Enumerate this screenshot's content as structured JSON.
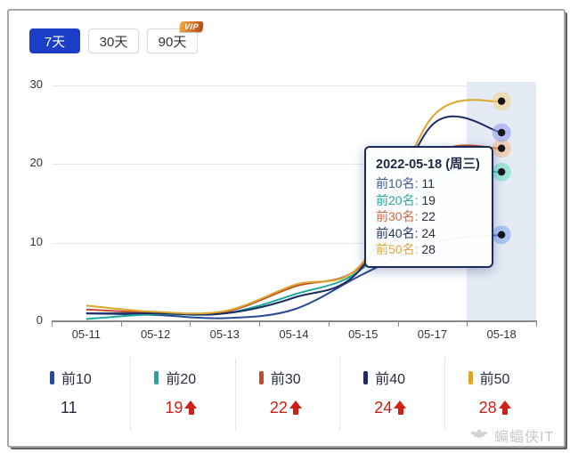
{
  "tabs": [
    {
      "label": "7天",
      "active": true
    },
    {
      "label": "30天",
      "active": false
    },
    {
      "label": "90天",
      "active": false,
      "badge": "VIP"
    }
  ],
  "chart_data": {
    "type": "line",
    "x": [
      "05-11",
      "05-12",
      "05-13",
      "05-14",
      "05-15",
      "05-17",
      "05-18"
    ],
    "series": [
      {
        "name": "前10",
        "color": "#2a4894",
        "halo": "#7aa5f2",
        "values": [
          1,
          0.8,
          0.4,
          1.5,
          6,
          10,
          11
        ]
      },
      {
        "name": "前20",
        "color": "#1fa89d",
        "halo": "#64dfc5",
        "values": [
          0.3,
          0.9,
          1,
          3.4,
          6.8,
          18,
          19
        ]
      },
      {
        "name": "前30",
        "color": "#c24a28",
        "halo": "#f6b77e",
        "values": [
          1.5,
          1.1,
          1.2,
          4.4,
          7.2,
          21,
          22
        ]
      },
      {
        "name": "前40",
        "color": "#1d2c63",
        "halo": "#8f96ec",
        "values": [
          1,
          1,
          1,
          3,
          7,
          25,
          24
        ]
      },
      {
        "name": "前50",
        "color": "#dca62c",
        "halo": "#f2d180",
        "values": [
          2,
          1.2,
          1.3,
          4.6,
          7.5,
          26,
          28
        ]
      }
    ],
    "ylim": [
      0,
      30
    ],
    "yticks": [
      "0",
      "10",
      "20",
      "30"
    ],
    "grid": true,
    "highlight_last_column": true,
    "endpoint_dots": true
  },
  "tooltip": {
    "title": "2022-05-18 (周三)",
    "rows": [
      {
        "label": "前10名:",
        "value": "11",
        "color": "#3d5a9a"
      },
      {
        "label": "前20名:",
        "value": "19",
        "color": "#27a89f"
      },
      {
        "label": "前30名:",
        "value": "22",
        "color": "#cf6a42"
      },
      {
        "label": "前40名:",
        "value": "24",
        "color": "#253766"
      },
      {
        "label": "前50名:",
        "value": "28",
        "color": "#dfa63e"
      }
    ]
  },
  "legend": [
    {
      "label": "前10",
      "value": "11",
      "color": "#2a4894",
      "up": false
    },
    {
      "label": "前20",
      "value": "19",
      "color": "#1fa89d",
      "up": true
    },
    {
      "label": "前30",
      "value": "22",
      "color": "#c24a28",
      "up": true
    },
    {
      "label": "前40",
      "value": "24",
      "color": "#1d2c63",
      "up": true
    },
    {
      "label": "前50",
      "value": "28",
      "color": "#dca62c",
      "up": true
    }
  ],
  "colors": {
    "accent_blue": "#1c3ec6",
    "rise_red": "#cf1f17",
    "value_dark": "#222b3e",
    "dot_center": "#16161c"
  },
  "watermark": {
    "text": "蝙蝠侠IT"
  }
}
